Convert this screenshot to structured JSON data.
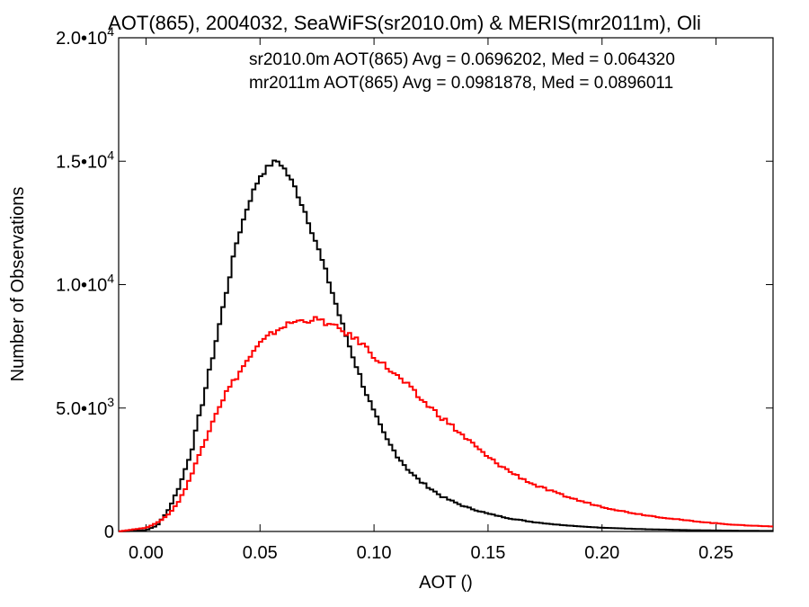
{
  "chart_data": {
    "type": "line",
    "line_style": "step",
    "title": "AOT(865), 2004032, SeaWiFS(sr2010.0m) & MERIS(mr2011m), Oli",
    "xlabel": "AOT ()",
    "ylabel": "Number of Observations",
    "xlim": [
      -0.012,
      0.275
    ],
    "ylim": [
      0,
      20000
    ],
    "x_ticks": [
      0.0,
      0.05,
      0.1,
      0.15,
      0.2,
      0.25
    ],
    "x_tick_labels": [
      "0.00",
      "0.05",
      "0.10",
      "0.15",
      "0.20",
      "0.25"
    ],
    "y_ticks": [
      0,
      5000,
      10000,
      15000,
      20000
    ],
    "y_tick_labels": [
      {
        "mantissa": "0",
        "exponent": ""
      },
      {
        "mantissa": "5.0•10",
        "exponent": "3"
      },
      {
        "mantissa": "1.0•10",
        "exponent": "4"
      },
      {
        "mantissa": "1.5•10",
        "exponent": "4"
      },
      {
        "mantissa": "2.0•10",
        "exponent": "4"
      }
    ],
    "grid": false,
    "legend_placement": "top-right",
    "series": [
      {
        "name": "sr2010.0m",
        "color": "#000000",
        "legend_text": "sr2010.0m AOT(865) Avg = 0.0696202, Med = 0.064320",
        "x": [
          -0.012,
          0.0,
          0.005,
          0.01,
          0.015,
          0.02,
          0.025,
          0.03,
          0.035,
          0.04,
          0.045,
          0.05,
          0.055,
          0.058,
          0.06,
          0.065,
          0.07,
          0.075,
          0.08,
          0.085,
          0.09,
          0.095,
          0.1,
          0.105,
          0.11,
          0.115,
          0.12,
          0.13,
          0.14,
          0.15,
          0.16,
          0.17,
          0.18,
          0.19,
          0.2,
          0.22,
          0.24,
          0.26,
          0.275
        ],
        "y": [
          0,
          50,
          250,
          900,
          1900,
          3300,
          5300,
          7400,
          9600,
          11800,
          13300,
          14400,
          14900,
          15000,
          14800,
          14000,
          12900,
          11600,
          10200,
          8700,
          7300,
          6000,
          4800,
          3800,
          3100,
          2500,
          2050,
          1400,
          1000,
          720,
          520,
          380,
          280,
          210,
          150,
          90,
          50,
          30,
          20
        ]
      },
      {
        "name": "mr2011m",
        "color": "#ff0000",
        "legend_text": "mr2011m AOT(865) Avg = 0.0981878, Med = 0.0896011",
        "x": [
          -0.012,
          0.0,
          0.005,
          0.01,
          0.015,
          0.02,
          0.025,
          0.03,
          0.035,
          0.04,
          0.045,
          0.05,
          0.055,
          0.06,
          0.065,
          0.07,
          0.075,
          0.08,
          0.085,
          0.09,
          0.095,
          0.1,
          0.105,
          0.11,
          0.115,
          0.12,
          0.13,
          0.14,
          0.15,
          0.16,
          0.17,
          0.18,
          0.19,
          0.2,
          0.21,
          0.22,
          0.23,
          0.24,
          0.25,
          0.26,
          0.275
        ],
        "y": [
          0,
          150,
          350,
          700,
          1300,
          2300,
          3500,
          4700,
          5600,
          6300,
          7000,
          7600,
          8000,
          8300,
          8500,
          8550,
          8600,
          8400,
          8200,
          7900,
          7600,
          7100,
          6700,
          6300,
          5900,
          5400,
          4600,
          3800,
          3000,
          2400,
          1900,
          1550,
          1250,
          1000,
          800,
          650,
          520,
          420,
          330,
          260,
          200
        ]
      }
    ]
  }
}
